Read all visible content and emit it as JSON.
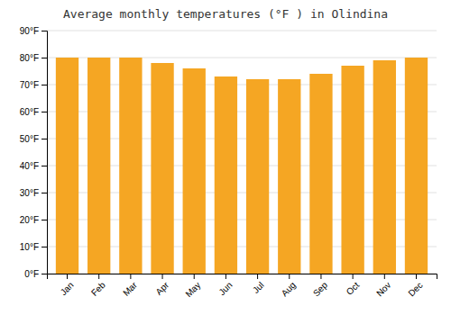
{
  "chart_data": {
    "type": "bar",
    "title": "Average monthly temperatures (°F ) in Olindina",
    "categories": [
      "Jan",
      "Feb",
      "Mar",
      "Apr",
      "May",
      "Jun",
      "Jul",
      "Aug",
      "Sep",
      "Oct",
      "Nov",
      "Dec"
    ],
    "values": [
      80,
      80,
      80,
      78,
      76,
      73,
      72,
      72,
      74,
      77,
      79,
      80
    ],
    "color": "#F5A623",
    "ylim": [
      0,
      90
    ],
    "yticks": [
      {
        "value": 0,
        "label": "0°F"
      },
      {
        "value": 10,
        "label": "10°F"
      },
      {
        "value": 20,
        "label": "20°F"
      },
      {
        "value": 30,
        "label": "30°F"
      },
      {
        "value": 40,
        "label": "40°F"
      },
      {
        "value": 50,
        "label": "50°F"
      },
      {
        "value": 60,
        "label": "60°F"
      },
      {
        "value": 70,
        "label": "70°F"
      },
      {
        "value": 80,
        "label": "80°F"
      },
      {
        "value": 90,
        "label": "90°F"
      }
    ],
    "grid": true
  }
}
